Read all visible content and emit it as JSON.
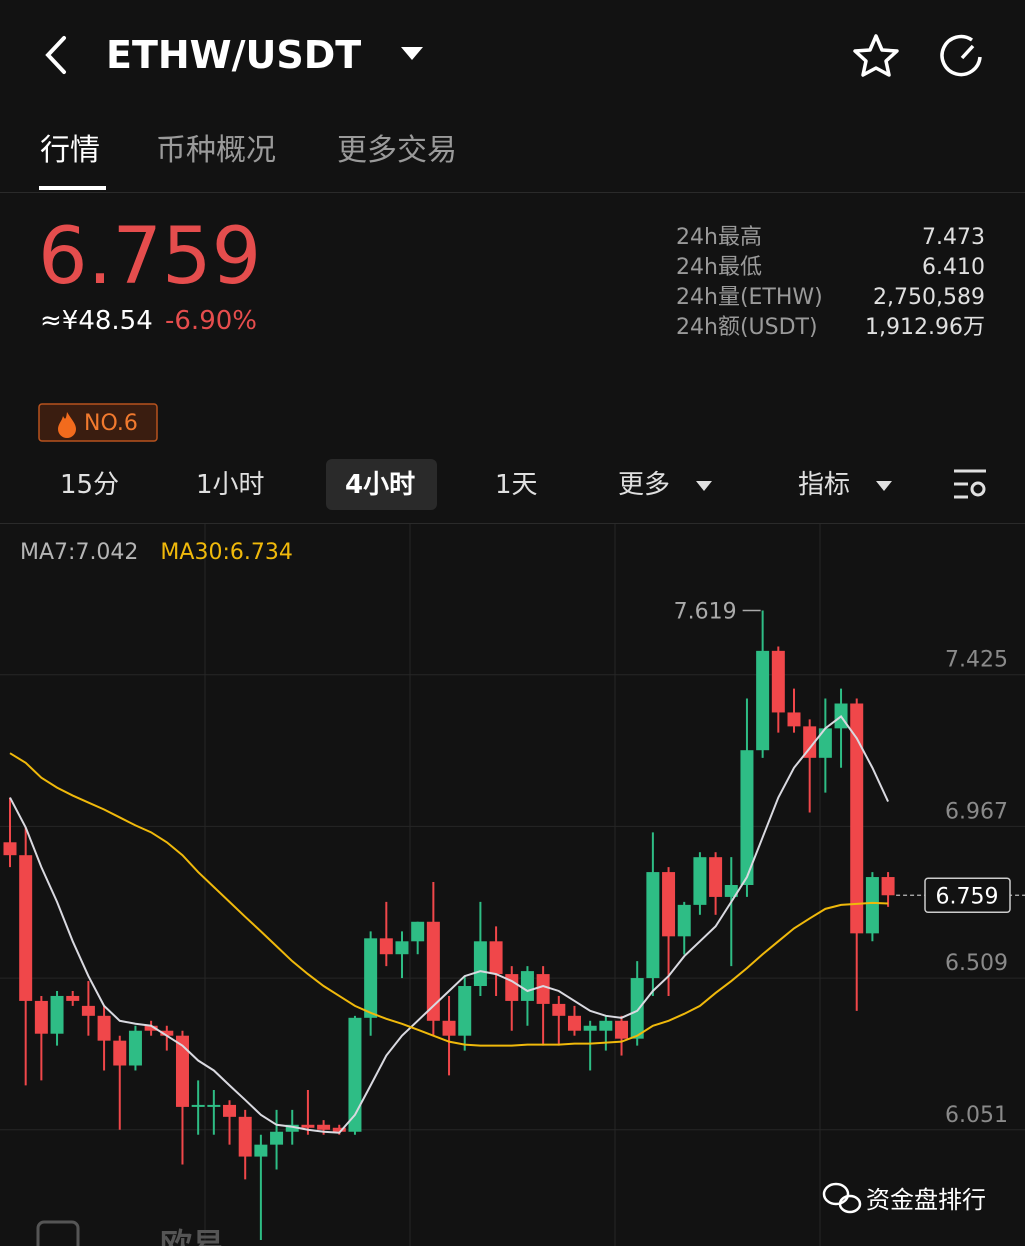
{
  "header": {
    "title": "ETHW/USDT"
  },
  "tabs": [
    "行情",
    "币种概况",
    "更多交易"
  ],
  "price": {
    "last": "6.759",
    "cny": "≈¥48.54",
    "change": "-6.90%"
  },
  "stats": [
    {
      "label": "24h最高",
      "value": "7.473"
    },
    {
      "label": "24h最低",
      "value": "6.410"
    },
    {
      "label": "24h量(ETHW)",
      "value": "2,750,589"
    },
    {
      "label": "24h额(USDT)",
      "value": "1,912.96万"
    }
  ],
  "rank": "NO.6",
  "intervals": [
    "15分",
    "1小时",
    "4小时",
    "1天",
    "更多",
    "指标"
  ],
  "chart_data": {
    "type": "candlestick",
    "ylim": [
      5.7,
      7.88
    ],
    "yticks": [
      7.425,
      6.967,
      6.509,
      6.051
    ],
    "grid": true,
    "up_color": "#2ebd85",
    "down_color": "#f0474a",
    "high_label": 7.619,
    "last_price": 6.759,
    "open": [
      6.919,
      6.88,
      6.44,
      6.341,
      6.455,
      6.425,
      6.395,
      6.32,
      6.245,
      6.365,
      6.35,
      6.335,
      6.12,
      6.12,
      6.126,
      6.09,
      5.97,
      6.006,
      6.045,
      6.066,
      6.066,
      6.057,
      6.045,
      6.389,
      6.629,
      6.581,
      6.62,
      6.679,
      6.38,
      6.335,
      6.485,
      6.62,
      6.521,
      6.44,
      6.521,
      6.431,
      6.395,
      6.35,
      6.35,
      6.38,
      6.326,
      6.509,
      6.829,
      6.635,
      6.73,
      6.874,
      6.754,
      6.79,
      7.197,
      7.497,
      7.311,
      7.269,
      7.174,
      7.263,
      7.338,
      6.644,
      6.814
    ],
    "high": [
      7.054,
      6.964,
      6.455,
      6.47,
      6.47,
      6.5,
      6.425,
      6.335,
      6.365,
      6.38,
      6.365,
      6.35,
      6.2,
      6.171,
      6.14,
      6.111,
      6.036,
      6.111,
      6.111,
      6.171,
      6.08,
      6.066,
      6.395,
      6.65,
      6.739,
      6.65,
      6.679,
      6.799,
      6.455,
      6.515,
      6.739,
      6.665,
      6.545,
      6.545,
      6.545,
      6.455,
      6.425,
      6.38,
      6.395,
      6.395,
      6.56,
      6.949,
      6.844,
      6.739,
      6.889,
      6.889,
      6.874,
      7.353,
      7.619,
      7.51,
      7.383,
      7.29,
      7.353,
      7.383,
      7.353,
      6.829,
      6.829
    ],
    "low": [
      6.844,
      6.185,
      6.2,
      6.305,
      6.425,
      6.335,
      6.23,
      6.051,
      6.23,
      6.335,
      6.29,
      5.946,
      6.036,
      6.036,
      6.006,
      5.901,
      5.718,
      5.931,
      6.006,
      6.036,
      6.036,
      6.036,
      6.036,
      6.335,
      6.545,
      6.509,
      6.581,
      6.335,
      6.215,
      6.29,
      6.455,
      6.455,
      6.35,
      6.365,
      6.305,
      6.305,
      6.335,
      6.23,
      6.29,
      6.275,
      6.305,
      6.455,
      6.455,
      6.58,
      6.7,
      6.7,
      6.545,
      6.754,
      7.174,
      7.25,
      7.25,
      7.009,
      7.069,
      7.144,
      6.41,
      6.62,
      6.724
    ],
    "close": [
      6.88,
      6.44,
      6.341,
      6.455,
      6.44,
      6.395,
      6.32,
      6.245,
      6.35,
      6.35,
      6.335,
      6.12,
      6.126,
      6.126,
      6.09,
      5.97,
      6.006,
      6.045,
      6.066,
      6.057,
      6.051,
      6.045,
      6.389,
      6.629,
      6.581,
      6.62,
      6.679,
      6.38,
      6.335,
      6.485,
      6.62,
      6.521,
      6.44,
      6.53,
      6.431,
      6.395,
      6.35,
      6.365,
      6.38,
      6.326,
      6.509,
      6.829,
      6.635,
      6.73,
      6.874,
      6.754,
      6.79,
      7.197,
      7.497,
      7.311,
      7.269,
      7.174,
      7.263,
      7.338,
      6.644,
      6.814,
      6.759
    ],
    "series": [
      {
        "name": "MA7:7.042",
        "color": "#d9d9e0",
        "values": [
          7.054,
          6.964,
          6.844,
          6.739,
          6.62,
          6.515,
          6.425,
          6.38,
          6.371,
          6.365,
          6.335,
          6.305,
          6.26,
          6.23,
          6.185,
          6.141,
          6.096,
          6.066,
          6.06,
          6.051,
          6.045,
          6.042,
          6.096,
          6.185,
          6.275,
          6.335,
          6.38,
          6.425,
          6.47,
          6.515,
          6.53,
          6.521,
          6.5,
          6.47,
          6.485,
          6.47,
          6.44,
          6.41,
          6.395,
          6.389,
          6.41,
          6.47,
          6.515,
          6.575,
          6.62,
          6.665,
          6.739,
          6.814,
          6.934,
          7.054,
          7.144,
          7.203,
          7.263,
          7.299,
          7.233,
          7.144,
          7.042
        ]
      },
      {
        "name": "MA30:6.734",
        "color": "#f0b90b",
        "values": [
          7.188,
          7.159,
          7.114,
          7.084,
          7.06,
          7.039,
          7.018,
          6.994,
          6.97,
          6.949,
          6.919,
          6.88,
          6.829,
          6.784,
          6.739,
          6.694,
          6.65,
          6.605,
          6.56,
          6.521,
          6.485,
          6.455,
          6.425,
          6.404,
          6.386,
          6.371,
          6.353,
          6.335,
          6.317,
          6.308,
          6.305,
          6.305,
          6.305,
          6.308,
          6.308,
          6.308,
          6.311,
          6.311,
          6.314,
          6.317,
          6.335,
          6.365,
          6.38,
          6.401,
          6.425,
          6.464,
          6.5,
          6.539,
          6.581,
          6.62,
          6.659,
          6.689,
          6.718,
          6.73,
          6.733,
          6.736,
          6.734
        ]
      }
    ]
  },
  "watermark": "资金盘排行",
  "bottom_logo": "欧易"
}
